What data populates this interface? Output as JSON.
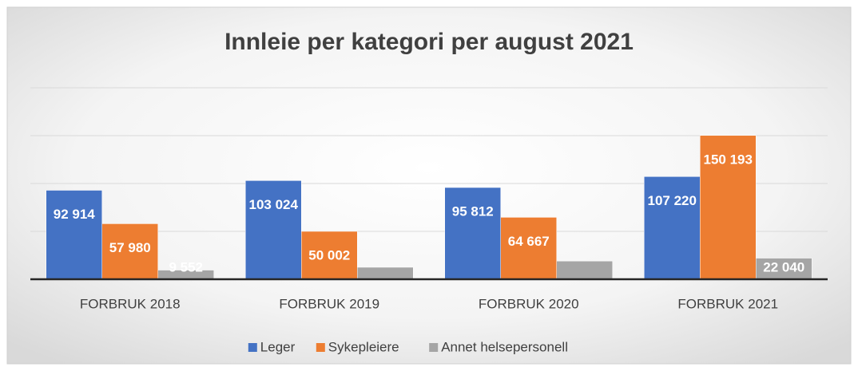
{
  "chart_data": {
    "type": "bar",
    "title": "Innleie per kategori per august 2021",
    "categories": [
      "FORBRUK 2018",
      "FORBRUK 2019",
      "FORBRUK 2020",
      "FORBRUK 2021"
    ],
    "series": [
      {
        "name": "Leger",
        "color": "#4472c4",
        "values": [
          92914,
          103024,
          95812,
          107220
        ],
        "value_labels": [
          "92 914",
          "103 024",
          "95 812",
          "107 220"
        ]
      },
      {
        "name": "Sykepleiere",
        "color": "#ed7d31",
        "values": [
          57980,
          50002,
          64667,
          150193
        ],
        "value_labels": [
          "57 980",
          "50 002",
          "64 667",
          "150 193"
        ]
      },
      {
        "name": "Annet helsepersonell",
        "color": "#a5a5a5",
        "values": [
          9552,
          12500,
          19000,
          22040
        ],
        "value_labels": [
          "9 552",
          null,
          null,
          "22 040"
        ]
      }
    ],
    "ylim": [
      0,
      200000
    ],
    "yticks": [
      0,
      50000,
      100000,
      150000,
      200000
    ],
    "grid": true,
    "legend": "bottom"
  }
}
